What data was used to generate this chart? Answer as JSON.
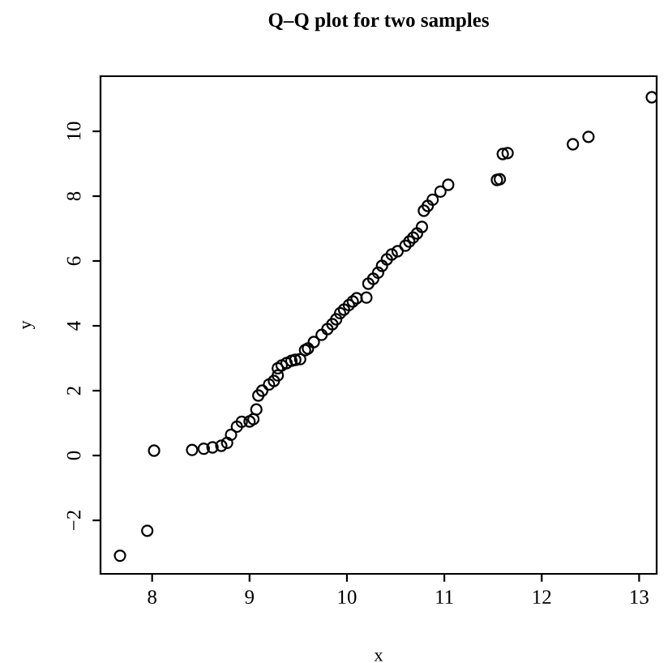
{
  "chart_data": {
    "type": "scatter",
    "title": "Q–Q plot for two samples",
    "xlabel": "x",
    "ylabel": "y",
    "series": [
      {
        "color": "#000000",
        "x": [
          7.67,
          7.95,
          8.02,
          8.41,
          8.53,
          8.62,
          8.71,
          8.77,
          8.81,
          8.87,
          8.92,
          9.0,
          9.04,
          9.07,
          9.09,
          9.13,
          9.2,
          9.25,
          9.29,
          9.29,
          9.33,
          9.38,
          9.43,
          9.47,
          9.52,
          9.57,
          9.6,
          9.66,
          9.74,
          9.8,
          9.85,
          9.89,
          9.93,
          9.97,
          10.02,
          10.06,
          10.1,
          10.2,
          10.22,
          10.27,
          10.32,
          10.36,
          10.41,
          10.46,
          10.52,
          10.6,
          10.64,
          10.68,
          10.72,
          10.77,
          10.79,
          10.83,
          10.88,
          10.96,
          11.04,
          11.54,
          11.57,
          11.6,
          11.65,
          12.32,
          12.48,
          13.13
        ],
        "values": [
          -3.09,
          -2.32,
          0.15,
          0.17,
          0.21,
          0.25,
          0.3,
          0.39,
          0.64,
          0.89,
          1.04,
          1.05,
          1.12,
          1.42,
          1.85,
          2.0,
          2.19,
          2.3,
          2.47,
          2.69,
          2.78,
          2.85,
          2.92,
          2.95,
          2.97,
          3.25,
          3.3,
          3.5,
          3.72,
          3.9,
          4.05,
          4.2,
          4.39,
          4.5,
          4.64,
          4.75,
          4.85,
          4.87,
          5.3,
          5.45,
          5.64,
          5.85,
          6.05,
          6.2,
          6.3,
          6.47,
          6.6,
          6.72,
          6.85,
          7.05,
          7.55,
          7.7,
          7.89,
          8.14,
          8.35,
          8.5,
          8.52,
          9.3,
          9.33,
          9.6,
          9.83,
          11.05
        ]
      }
    ],
    "marker": "circle",
    "grid": false,
    "legend": false,
    "xlim": [
      7.47,
      13.18
    ],
    "ylim": [
      -3.65,
      11.7
    ],
    "xticks": [
      8,
      9,
      10,
      11,
      12,
      13
    ],
    "yticks": [
      {
        "value": -2,
        "label": "−2"
      },
      0,
      2,
      4,
      6,
      8,
      10
    ]
  }
}
